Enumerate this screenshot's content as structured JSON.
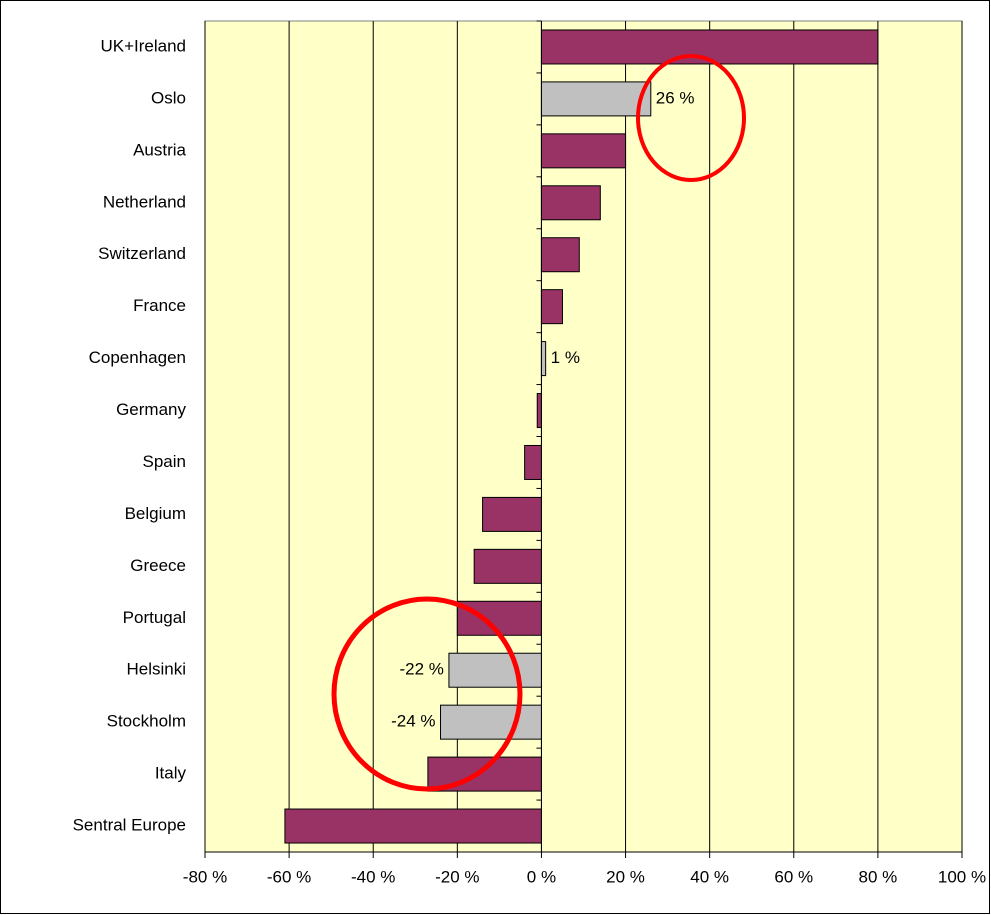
{
  "chart_data": {
    "type": "bar",
    "orientation": "horizontal",
    "categories": [
      "UK+Ireland",
      "Oslo",
      "Austria",
      "Netherland",
      "Switzerland",
      "France",
      "Copenhagen",
      "Germany",
      "Spain",
      "Belgium",
      "Greece",
      "Portugal",
      "Helsinki",
      "Stockholm",
      "Italy",
      "Sentral Europe"
    ],
    "values": [
      80,
      26,
      20,
      14,
      9,
      5,
      1,
      -1,
      -4,
      -14,
      -16,
      -20,
      -22,
      -24,
      -27,
      -61
    ],
    "value_labels": [
      null,
      "26 %",
      null,
      null,
      null,
      null,
      "1 %",
      null,
      null,
      null,
      null,
      null,
      "-22 %",
      "-24 %",
      null,
      null
    ],
    "colors": [
      "#993366",
      "#c0c0c0",
      "#993366",
      "#993366",
      "#993366",
      "#993366",
      "#c0c0c0",
      "#993366",
      "#993366",
      "#993366",
      "#993366",
      "#993366",
      "#c0c0c0",
      "#c0c0c0",
      "#993366",
      "#993366"
    ],
    "xlim": [
      -80,
      100
    ],
    "xticks": [
      {
        "value": -80,
        "label": "-80 %"
      },
      {
        "value": -60,
        "label": "-60 %"
      },
      {
        "value": -40,
        "label": "-40 %"
      },
      {
        "value": -20,
        "label": "-20 %"
      },
      {
        "value": 0,
        "label": "0 %"
      },
      {
        "value": 20,
        "label": "20 %"
      },
      {
        "value": 40,
        "label": "40 %"
      },
      {
        "value": 60,
        "label": "60 %"
      },
      {
        "value": 80,
        "label": "80 %"
      },
      {
        "value": 100,
        "label": "100 %"
      }
    ],
    "grid": true,
    "background": "#ffffc8"
  }
}
